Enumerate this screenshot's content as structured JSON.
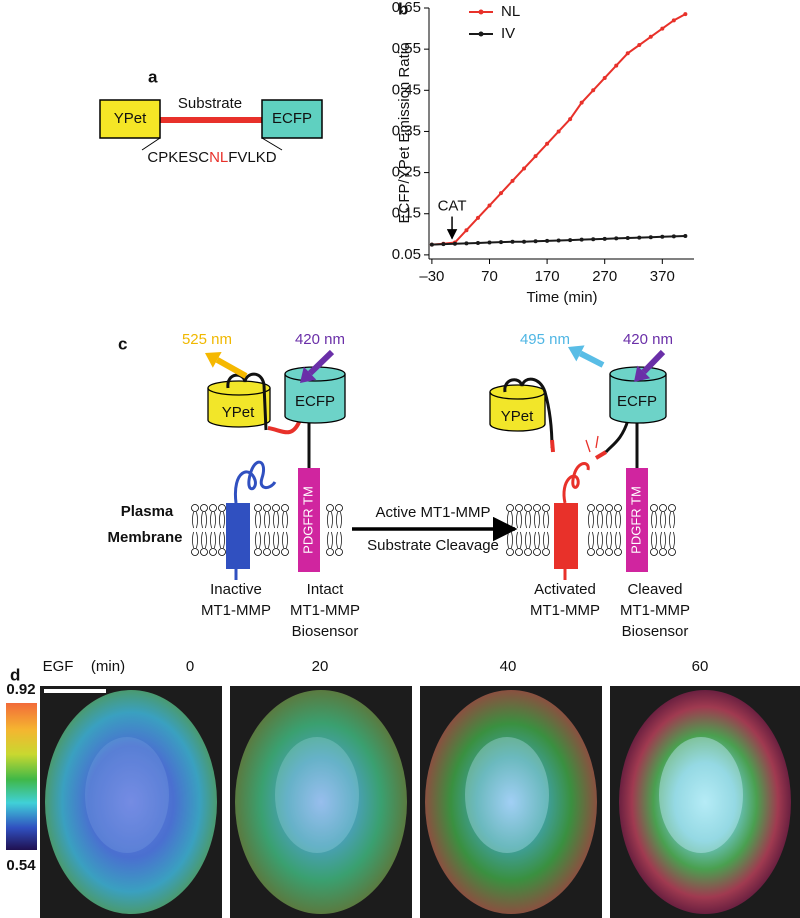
{
  "panel_a": {
    "label": "a",
    "left": "YPet",
    "linker": "Substrate",
    "right": "ECFP",
    "sequence": [
      "CPKESC",
      "NL",
      "FVLKD"
    ]
  },
  "chart_data": {
    "type": "line",
    "label": "b",
    "xlabel": "Time (min)",
    "ylabel": "ECFP/YPet Emission Ratio",
    "x": [
      -30,
      -10,
      10,
      30,
      50,
      70,
      90,
      110,
      130,
      150,
      170,
      190,
      210,
      230,
      250,
      270,
      290,
      310,
      330,
      350,
      370,
      390,
      410
    ],
    "series": [
      {
        "name": "NL",
        "color": "#e8312a",
        "values": [
          0.075,
          0.077,
          0.08,
          0.11,
          0.14,
          0.17,
          0.2,
          0.23,
          0.26,
          0.29,
          0.32,
          0.35,
          0.38,
          0.42,
          0.45,
          0.48,
          0.51,
          0.54,
          0.56,
          0.58,
          0.6,
          0.62,
          0.635
        ]
      },
      {
        "name": "IV",
        "color": "#1a1a1a",
        "values": [
          0.075,
          0.076,
          0.077,
          0.078,
          0.079,
          0.08,
          0.081,
          0.082,
          0.082,
          0.083,
          0.084,
          0.085,
          0.086,
          0.087,
          0.088,
          0.089,
          0.09,
          0.091,
          0.092,
          0.093,
          0.094,
          0.095,
          0.096
        ]
      }
    ],
    "xlim": [
      -35,
      425
    ],
    "ylim": [
      0.04,
      0.65
    ],
    "xticks": [
      {
        "value": -30,
        "label": "–30"
      },
      70,
      170,
      270,
      370
    ],
    "yticks": [
      0.05,
      0.15,
      0.25,
      0.35,
      0.45,
      0.55,
      0.65
    ],
    "legend": "upper left",
    "annotations": [
      {
        "text": "CAT",
        "x": 5
      }
    ]
  },
  "panel_c": {
    "label": "c",
    "before": {
      "emission": "525 nm",
      "excitation": "420 nm",
      "donor": "YPet",
      "acceptor": "ECFP",
      "anchor": "PDGFR TM",
      "enzyme": [
        "Inactive",
        "MT1-MMP"
      ],
      "sensor": [
        "Intact",
        "MT1-MMP",
        "Biosensor"
      ]
    },
    "membrane": [
      "Plasma",
      "Membrane"
    ],
    "process": [
      "Active MT1-MMP",
      "Substrate Cleavage"
    ],
    "after": {
      "emission": "495 nm",
      "excitation": "420 nm",
      "donor": "YPet",
      "acceptor": "ECFP",
      "anchor": "PDGFR TM",
      "enzyme": [
        "Activated",
        "MT1-MMP"
      ],
      "sensor": [
        "Cleaved",
        "MT1-MMP",
        "Biosensor"
      ]
    }
  },
  "panel_d": {
    "label": "d",
    "stimulus": "EGF",
    "unit": "(min)",
    "times": [
      0,
      20,
      40,
      60
    ],
    "colorbar": {
      "max": 0.92,
      "min": 0.54
    }
  }
}
